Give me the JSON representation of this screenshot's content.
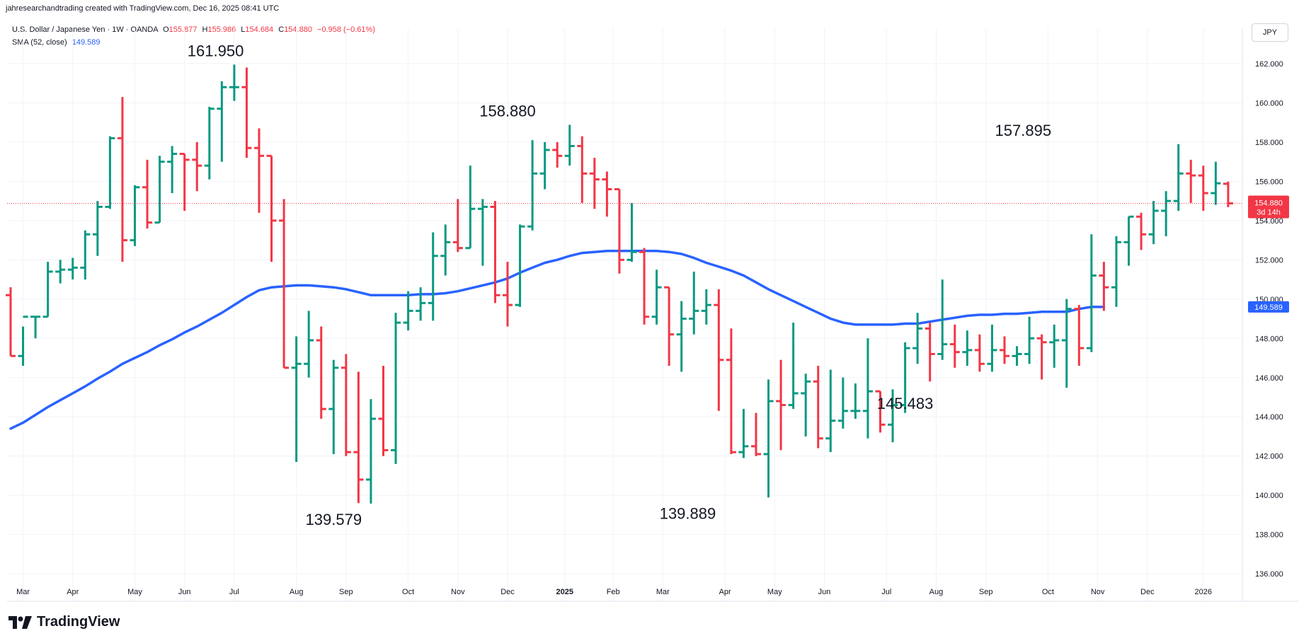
{
  "attribution": "jahresearchandtrading created with TradingView.com, Dec 16, 2025 08:41 UTC",
  "legend": {
    "symbol": "U.S. Dollar / Japanese Yen · 1W · OANDA",
    "o_label": "O",
    "o": "155.877",
    "h_label": "H",
    "h": "155.986",
    "l_label": "L",
    "l": "154.684",
    "c_label": "C",
    "c": "154.880",
    "change": "−0.958 (−0.61%)",
    "sma_label": "SMA (52, close)",
    "sma_value": "149.589"
  },
  "currency_button": "JPY",
  "footer_logo": "TradingView",
  "colors": {
    "up": "#089981",
    "down": "#f23645",
    "sma": "#2962ff",
    "grid": "#f0f3fa",
    "axis_text": "#131722"
  },
  "chart_data": {
    "type": "ohlc",
    "title": "U.S. Dollar / Japanese Yen · 1W · OANDA",
    "ylim": [
      134.6,
      163.8
    ],
    "y_ticks": [
      "162.000",
      "160.000",
      "158.000",
      "156.000",
      "154.000",
      "152.000",
      "150.000",
      "148.000",
      "146.000",
      "144.000",
      "142.000",
      "140.000",
      "138.000",
      "136.000"
    ],
    "x_ticks": [
      "Mar",
      "Apr",
      "May",
      "Jun",
      "Jul",
      "Aug",
      "Sep",
      "Oct",
      "Nov",
      "Dec",
      "2025",
      "Feb",
      "Mar",
      "Apr",
      "May",
      "Jun",
      "Jul",
      "Aug",
      "Sep",
      "Oct",
      "Nov",
      "Dec",
      "2026"
    ],
    "x_tick_weeks": [
      1.0,
      5.0,
      10.0,
      14.0,
      18.0,
      23.0,
      27.0,
      32.0,
      36.0,
      40.0,
      44.6,
      48.5,
      52.5,
      57.5,
      61.5,
      65.5,
      70.5,
      74.5,
      78.5,
      83.5,
      87.5,
      91.5,
      96.0
    ],
    "grid": true,
    "current_price": {
      "value": 154.88,
      "label": "154.880",
      "countdown": "3d 14h"
    },
    "sma": {
      "name": "SMA (52, close)",
      "last_label": "149.589",
      "points": [
        [
          0,
          143.4
        ],
        [
          1,
          143.7
        ],
        [
          2,
          144.1
        ],
        [
          3,
          144.5
        ],
        [
          4,
          144.85
        ],
        [
          5,
          145.2
        ],
        [
          6,
          145.55
        ],
        [
          7,
          145.95
        ],
        [
          8,
          146.3
        ],
        [
          9,
          146.7
        ],
        [
          10,
          147.0
        ],
        [
          11,
          147.3
        ],
        [
          12,
          147.65
        ],
        [
          13,
          147.95
        ],
        [
          14,
          148.3
        ],
        [
          15,
          148.6
        ],
        [
          16,
          148.95
        ],
        [
          17,
          149.3
        ],
        [
          18,
          149.7
        ],
        [
          19,
          150.1
        ],
        [
          20,
          150.45
        ],
        [
          21,
          150.6
        ],
        [
          22,
          150.65
        ],
        [
          23,
          150.7
        ],
        [
          24,
          150.7
        ],
        [
          25,
          150.65
        ],
        [
          26,
          150.6
        ],
        [
          27,
          150.5
        ],
        [
          28,
          150.35
        ],
        [
          29,
          150.2
        ],
        [
          30,
          150.2
        ],
        [
          31,
          150.2
        ],
        [
          32,
          150.2
        ],
        [
          33,
          150.25
        ],
        [
          34,
          150.25
        ],
        [
          35,
          150.3
        ],
        [
          36,
          150.4
        ],
        [
          37,
          150.55
        ],
        [
          38,
          150.7
        ],
        [
          39,
          150.85
        ],
        [
          40,
          151.05
        ],
        [
          41,
          151.35
        ],
        [
          42,
          151.6
        ],
        [
          43,
          151.85
        ],
        [
          44,
          152.0
        ],
        [
          45,
          152.2
        ],
        [
          46,
          152.35
        ],
        [
          47,
          152.4
        ],
        [
          48,
          152.45
        ],
        [
          49,
          152.45
        ],
        [
          50,
          152.45
        ],
        [
          51,
          152.45
        ],
        [
          52,
          152.45
        ],
        [
          53,
          152.4
        ],
        [
          54,
          152.3
        ],
        [
          55,
          152.1
        ],
        [
          56,
          151.85
        ],
        [
          57,
          151.65
        ],
        [
          58,
          151.45
        ],
        [
          59,
          151.2
        ],
        [
          60,
          150.85
        ],
        [
          61,
          150.5
        ],
        [
          62,
          150.2
        ],
        [
          63,
          149.9
        ],
        [
          64,
          149.6
        ],
        [
          65,
          149.3
        ],
        [
          66,
          149.0
        ],
        [
          67,
          148.8
        ],
        [
          68,
          148.7
        ],
        [
          69,
          148.7
        ],
        [
          70,
          148.7
        ],
        [
          71,
          148.7
        ],
        [
          72,
          148.75
        ],
        [
          73,
          148.75
        ],
        [
          74,
          148.85
        ],
        [
          75,
          148.95
        ],
        [
          76,
          149.05
        ],
        [
          77,
          149.15
        ],
        [
          78,
          149.2
        ],
        [
          79,
          149.2
        ],
        [
          80,
          149.25
        ],
        [
          81,
          149.25
        ],
        [
          82,
          149.3
        ],
        [
          83,
          149.35
        ],
        [
          84,
          149.35
        ],
        [
          85,
          149.35
        ],
        [
          86,
          149.5
        ],
        [
          87,
          149.6
        ],
        [
          88,
          149.6
        ]
      ]
    },
    "annotations": [
      {
        "label": "161.950",
        "week": 16.5,
        "value": 161.95,
        "pos": "above"
      },
      {
        "label": "139.579",
        "week": 26.0,
        "value": 139.579,
        "pos": "below"
      },
      {
        "label": "158.880",
        "week": 40.0,
        "value": 158.88,
        "pos": "above"
      },
      {
        "label": "139.889",
        "week": 54.5,
        "value": 139.889,
        "pos": "below"
      },
      {
        "label": "157.895",
        "week": 81.5,
        "value": 157.895,
        "pos": "above"
      },
      {
        "label": "145.483",
        "week": 72.0,
        "value": 145.483,
        "pos": "below"
      }
    ],
    "bars": [
      [
        150.2,
        150.6,
        147.1,
        147.1
      ],
      [
        147.1,
        148.6,
        146.6,
        149.1
      ],
      [
        149.1,
        149.1,
        148.0,
        149.1
      ],
      [
        149.1,
        151.9,
        149.1,
        151.4
      ],
      [
        151.4,
        152.0,
        150.8,
        151.5
      ],
      [
        151.5,
        152.1,
        151.0,
        151.6
      ],
      [
        151.6,
        153.5,
        151.0,
        153.3
      ],
      [
        153.3,
        155.0,
        152.2,
        154.7
      ],
      [
        154.7,
        158.3,
        154.6,
        158.2
      ],
      [
        158.2,
        160.3,
        151.9,
        153.0
      ],
      [
        153.0,
        155.8,
        152.7,
        155.7
      ],
      [
        155.7,
        157.1,
        153.6,
        153.9
      ],
      [
        153.9,
        157.3,
        153.9,
        157.0
      ],
      [
        157.0,
        157.8,
        155.4,
        157.4
      ],
      [
        157.4,
        157.4,
        154.5,
        157.1
      ],
      [
        157.1,
        158.0,
        155.5,
        156.8
      ],
      [
        156.8,
        159.8,
        156.1,
        159.7
      ],
      [
        159.7,
        161.1,
        157.0,
        160.8
      ],
      [
        160.8,
        161.95,
        160.1,
        160.8
      ],
      [
        160.8,
        161.8,
        157.2,
        157.7
      ],
      [
        157.7,
        158.7,
        154.4,
        157.3
      ],
      [
        157.3,
        157.3,
        151.9,
        154.0
      ],
      [
        154.0,
        155.1,
        146.5,
        146.5
      ],
      [
        146.5,
        148.1,
        141.7,
        146.7
      ],
      [
        146.7,
        149.4,
        146.0,
        147.9
      ],
      [
        147.9,
        148.6,
        143.9,
        144.4
      ],
      [
        144.4,
        146.9,
        142.1,
        146.5
      ],
      [
        146.5,
        147.2,
        142.0,
        142.2
      ],
      [
        142.2,
        146.3,
        139.6,
        140.8
      ],
      [
        140.8,
        144.9,
        139.579,
        143.9
      ],
      [
        143.9,
        146.6,
        142.0,
        142.3
      ],
      [
        142.3,
        149.3,
        141.6,
        148.8
      ],
      [
        148.8,
        150.4,
        148.4,
        149.4
      ],
      [
        149.4,
        150.6,
        148.9,
        149.8
      ],
      [
        149.8,
        153.4,
        148.9,
        152.2
      ],
      [
        152.2,
        153.8,
        151.2,
        152.9
      ],
      [
        152.9,
        155.1,
        152.4,
        152.6
      ],
      [
        152.6,
        156.8,
        152.6,
        154.6
      ],
      [
        154.6,
        155.1,
        151.7,
        154.7
      ],
      [
        154.7,
        155.0,
        149.8,
        150.2
      ],
      [
        150.2,
        151.9,
        148.6,
        149.7
      ],
      [
        149.7,
        153.8,
        149.6,
        153.7
      ],
      [
        153.7,
        158.1,
        153.5,
        156.4
      ],
      [
        156.4,
        158.0,
        155.6,
        157.6
      ],
      [
        157.6,
        158.0,
        156.7,
        157.3
      ],
      [
        157.3,
        158.88,
        156.8,
        157.8
      ],
      [
        157.8,
        158.3,
        154.9,
        156.4
      ],
      [
        156.4,
        157.2,
        154.6,
        156.1
      ],
      [
        156.1,
        156.5,
        154.2,
        155.6
      ],
      [
        155.6,
        155.6,
        151.3,
        152.0
      ],
      [
        152.0,
        154.9,
        151.9,
        152.4
      ],
      [
        152.4,
        152.6,
        148.7,
        149.1
      ],
      [
        149.1,
        151.5,
        148.7,
        150.6
      ],
      [
        150.6,
        150.6,
        146.6,
        148.2
      ],
      [
        148.2,
        149.9,
        146.3,
        149.0
      ],
      [
        149.0,
        151.4,
        148.2,
        149.4
      ],
      [
        149.4,
        150.5,
        148.7,
        149.7
      ],
      [
        149.7,
        150.5,
        144.3,
        146.9
      ],
      [
        146.9,
        148.5,
        142.1,
        142.2
      ],
      [
        142.2,
        144.4,
        141.9,
        142.5
      ],
      [
        142.5,
        144.2,
        142.0,
        142.1
      ],
      [
        142.1,
        145.9,
        139.889,
        144.8
      ],
      [
        144.8,
        146.9,
        142.3,
        144.6
      ],
      [
        144.6,
        148.8,
        144.4,
        145.2
      ],
      [
        145.2,
        146.2,
        143.0,
        145.8
      ],
      [
        145.8,
        146.6,
        142.4,
        142.9
      ],
      [
        142.9,
        146.4,
        142.2,
        143.8
      ],
      [
        143.8,
        146.0,
        143.4,
        144.3
      ],
      [
        144.3,
        145.7,
        143.9,
        144.3
      ],
      [
        144.3,
        148.0,
        142.9,
        145.3
      ],
      [
        145.3,
        145.3,
        143.2,
        143.6
      ],
      [
        143.6,
        145.4,
        142.7,
        144.6
      ],
      [
        144.6,
        147.8,
        144.2,
        147.5
      ],
      [
        147.5,
        149.3,
        146.7,
        148.5
      ],
      [
        148.5,
        148.8,
        145.8,
        147.2
      ],
      [
        147.2,
        151.0,
        146.9,
        147.7
      ],
      [
        147.7,
        148.7,
        146.5,
        147.3
      ],
      [
        147.3,
        148.4,
        146.6,
        147.4
      ],
      [
        147.4,
        148.2,
        146.3,
        146.7
      ],
      [
        146.7,
        148.7,
        146.3,
        147.4
      ],
      [
        147.4,
        148.1,
        146.7,
        147.1
      ],
      [
        147.1,
        147.6,
        146.6,
        147.2
      ],
      [
        147.2,
        149.1,
        146.7,
        148.0
      ],
      [
        148.0,
        148.2,
        145.9,
        147.8
      ],
      [
        147.8,
        148.7,
        146.5,
        147.9
      ],
      [
        147.9,
        150.0,
        145.483,
        149.5
      ],
      [
        149.5,
        149.7,
        146.6,
        147.5
      ],
      [
        147.5,
        153.3,
        147.3,
        151.2
      ],
      [
        151.2,
        151.9,
        149.4,
        150.6
      ],
      [
        150.6,
        153.2,
        149.6,
        152.9
      ],
      [
        152.9,
        154.2,
        151.7,
        154.2
      ],
      [
        154.2,
        154.4,
        152.5,
        153.3
      ],
      [
        153.3,
        155.0,
        152.8,
        154.5
      ],
      [
        154.5,
        155.5,
        153.2,
        155.0
      ],
      [
        155.0,
        157.895,
        154.5,
        156.4
      ],
      [
        156.4,
        157.1,
        154.9,
        156.3
      ],
      [
        156.3,
        156.8,
        154.5,
        155.4
      ],
      [
        155.4,
        157.0,
        154.8,
        155.9
      ],
      [
        155.877,
        155.986,
        154.684,
        154.88
      ]
    ]
  }
}
